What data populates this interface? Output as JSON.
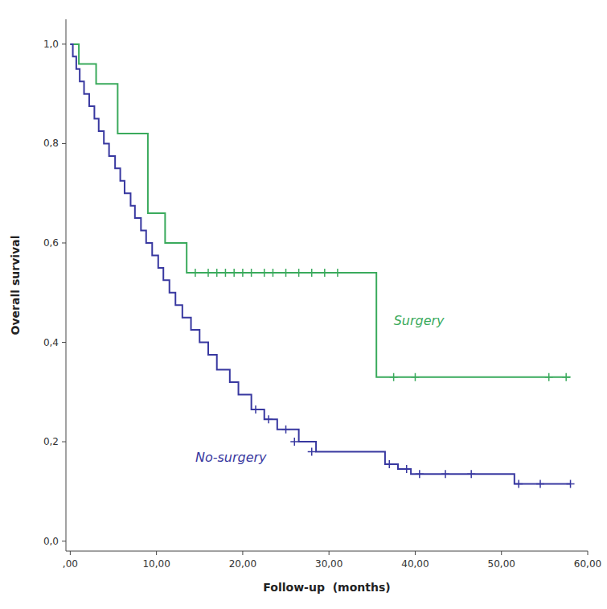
{
  "chart_data": {
    "type": "line",
    "x_label": "Follow-up  (months)",
    "y_label": "Overall survival",
    "xlim": [
      -0.5,
      60
    ],
    "ylim": [
      -0.02,
      1.05
    ],
    "xticks": [
      {
        "value": 0,
        "label": ",00"
      },
      {
        "value": 10,
        "label": "10,00"
      },
      {
        "value": 20,
        "label": "20,00"
      },
      {
        "value": 30,
        "label": "30,00"
      },
      {
        "value": 40,
        "label": "40,00"
      },
      {
        "value": 50,
        "label": "50,00"
      },
      {
        "value": 60,
        "label": "60,00"
      }
    ],
    "yticks": [
      {
        "value": 0.0,
        "label": "0,0"
      },
      {
        "value": 0.2,
        "label": "0,2"
      },
      {
        "value": 0.4,
        "label": "0,4"
      },
      {
        "value": 0.6,
        "label": "0,6"
      },
      {
        "value": 0.8,
        "label": "0,8"
      },
      {
        "value": 1.0,
        "label": "1,0"
      }
    ],
    "grid": false,
    "series": [
      {
        "type": "line",
        "line_style": "solid",
        "color": "#3aaa5c",
        "x": [
          0,
          1.0,
          1.0,
          3.0,
          3.0,
          5.5,
          5.5,
          9.0,
          9.0,
          11.0,
          11.0,
          13.5,
          13.5,
          35.5,
          35.5,
          58.0
        ],
        "values": [
          1.0,
          1.0,
          0.96,
          0.96,
          0.92,
          0.92,
          0.82,
          0.82,
          0.66,
          0.66,
          0.6,
          0.6,
          0.54,
          0.54,
          0.33,
          0.33
        ]
      },
      {
        "type": "line",
        "line_style": "solid",
        "color": "#3838a0",
        "x": [
          0,
          0.3,
          0.3,
          0.7,
          0.7,
          1.1,
          1.1,
          1.6,
          1.6,
          2.2,
          2.2,
          2.8,
          2.8,
          3.3,
          3.3,
          3.9,
          3.9,
          4.5,
          4.5,
          5.2,
          5.2,
          5.8,
          5.8,
          6.3,
          6.3,
          7.0,
          7.0,
          7.5,
          7.5,
          8.2,
          8.2,
          8.8,
          8.8,
          9.5,
          9.5,
          10.2,
          10.2,
          10.8,
          10.8,
          11.5,
          11.5,
          12.2,
          12.2,
          13.0,
          13.0,
          14.0,
          14.0,
          15.0,
          15.0,
          16.0,
          16.0,
          17.0,
          17.0,
          18.5,
          18.5,
          19.5,
          19.5,
          21.0,
          21.0,
          22.5,
          22.5,
          24.0,
          24.0,
          26.5,
          26.5,
          28.5,
          28.5,
          36.5,
          36.5,
          38.0,
          38.0,
          39.5,
          39.5,
          51.5,
          51.5,
          58.0
        ],
        "values": [
          1.0,
          1.0,
          0.975,
          0.975,
          0.95,
          0.95,
          0.925,
          0.925,
          0.9,
          0.9,
          0.875,
          0.875,
          0.85,
          0.85,
          0.825,
          0.825,
          0.8,
          0.8,
          0.775,
          0.775,
          0.75,
          0.75,
          0.725,
          0.725,
          0.7,
          0.7,
          0.675,
          0.675,
          0.65,
          0.65,
          0.625,
          0.625,
          0.6,
          0.6,
          0.575,
          0.575,
          0.55,
          0.55,
          0.525,
          0.525,
          0.5,
          0.5,
          0.475,
          0.475,
          0.45,
          0.45,
          0.425,
          0.425,
          0.4,
          0.4,
          0.375,
          0.375,
          0.345,
          0.345,
          0.32,
          0.32,
          0.295,
          0.295,
          0.265,
          0.265,
          0.245,
          0.245,
          0.225,
          0.225,
          0.2,
          0.2,
          0.18,
          0.18,
          0.155,
          0.155,
          0.145,
          0.145,
          0.135,
          0.135,
          0.115,
          0.115
        ]
      },
      {
        "type": "scatter",
        "marker": "+",
        "color": "#3aaa5c",
        "x": [
          14.5,
          16.0,
          17.0,
          18.0,
          19.0,
          20.0,
          21.0,
          22.5,
          23.5,
          25.0,
          26.5,
          28.0,
          29.5,
          31.0,
          37.5,
          40.0,
          55.5,
          57.5
        ],
        "values": [
          0.54,
          0.54,
          0.54,
          0.54,
          0.54,
          0.54,
          0.54,
          0.54,
          0.54,
          0.54,
          0.54,
          0.54,
          0.54,
          0.54,
          0.33,
          0.33,
          0.33,
          0.33
        ]
      },
      {
        "type": "scatter",
        "marker": "+",
        "color": "#3838a0",
        "x": [
          21.5,
          23.0,
          25.0,
          26.0,
          28.0,
          37.0,
          39.0,
          40.5,
          43.5,
          46.5,
          52.0,
          54.5,
          58.0
        ],
        "values": [
          0.265,
          0.245,
          0.225,
          0.2,
          0.18,
          0.155,
          0.145,
          0.135,
          0.135,
          0.135,
          0.115,
          0.115,
          0.115
        ]
      }
    ],
    "annotations": [
      {
        "text": "Surgery",
        "x": 37.5,
        "y": 0.435,
        "color": "#3aaa5c"
      },
      {
        "text": "No-surgery",
        "x": 14.5,
        "y": 0.16,
        "color": "#3838a0"
      }
    ]
  }
}
